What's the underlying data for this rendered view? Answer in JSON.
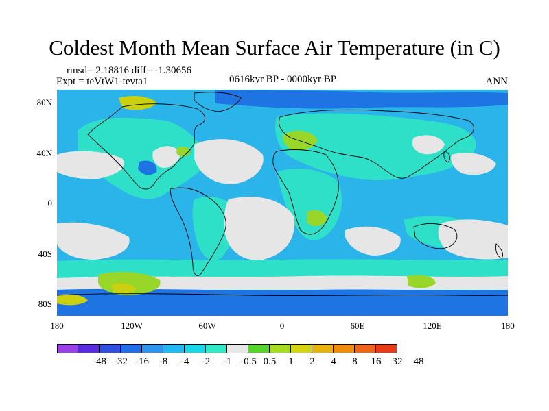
{
  "title": "Coldest Month Mean Surface Air Temperature (in C)",
  "stats_text": "rmsd= 2.18816 diff= -1.30656",
  "experiment_text": "Expt = teVtW1-tevta1",
  "period_text": "0616kyr BP - 0000kyr BP",
  "season_text": "ANN",
  "y_axis_labels": [
    "80N",
    "40N",
    "0",
    "40S",
    "80S"
  ],
  "x_axis_labels": [
    "180",
    "120W",
    "60W",
    "0",
    "60E",
    "120E",
    "180"
  ],
  "colorbar": {
    "labels": [
      "-48",
      "-32",
      "-16",
      "-8",
      "-4",
      "-2",
      "-1",
      "-0.5",
      "0.5",
      "1",
      "2",
      "4",
      "8",
      "16",
      "32",
      "48"
    ],
    "colors": [
      "#9B3FE6",
      "#5A2BE0",
      "#2F4FE0",
      "#1E6FE8",
      "#2B95EF",
      "#22B8F2",
      "#19D7E8",
      "#2FE8C8",
      "#E6E6E6",
      "#55D42C",
      "#A6DC1E",
      "#D4D40F",
      "#E8B40C",
      "#F08C0C",
      "#F0641A",
      "#E83A14"
    ]
  },
  "map_colors": {
    "ocean_base": "#2BB4EA",
    "land_base": "#2FE0C9",
    "neutral": "#E6E6E6",
    "warm_light": "#99D62A",
    "warm": "#CCD10F",
    "cold": "#1E74E3",
    "coast": "#000000"
  }
}
